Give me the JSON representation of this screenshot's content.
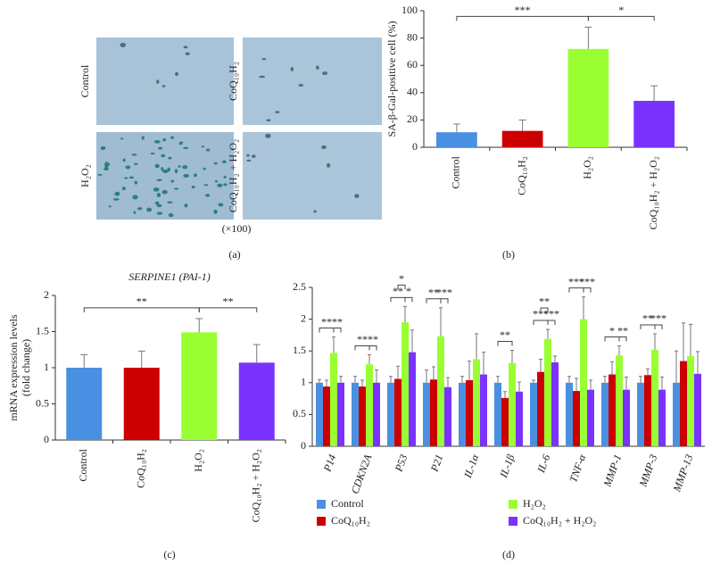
{
  "panel_a": {
    "labels": [
      "Control",
      "CoQ₁₀H₂",
      "H₂O₂",
      "CoQ₁₀H₂ + H₂O₂"
    ],
    "magnification": "(×100)",
    "caption": "(a)"
  },
  "chart_data": [
    {
      "type": "bar",
      "caption": "(b)",
      "y_label": [
        "SA-β-Gal-positive cell (%)"
      ],
      "categories": [
        "Control",
        "CoQ₁₀H₂",
        "H₂O₂",
        "CoQ₁₀H₂ + H₂O₂"
      ],
      "values": [
        11,
        12,
        72,
        34
      ],
      "errors": [
        6,
        8,
        16,
        11
      ],
      "colors": [
        "#4a90e2",
        "#cc0000",
        "#99ff33",
        "#7a33ff"
      ],
      "ylim": [
        0,
        100
      ],
      "yticks": [
        0,
        20,
        40,
        60,
        80,
        100
      ],
      "significance": [
        {
          "from": 0,
          "to": 2,
          "label": "***"
        },
        {
          "from": 2,
          "to": 3,
          "label": "*"
        }
      ]
    },
    {
      "type": "bar",
      "caption": "(c)",
      "title": "SERPINE1 (PAI-1)",
      "y_label": [
        "mRNA expression levels",
        "(fold change)"
      ],
      "categories": [
        "Control",
        "CoQ₁₀H₂",
        "H₂O₂",
        "CoQ₁₀H₂ + H₂O₂"
      ],
      "values": [
        1.0,
        1.0,
        1.49,
        1.07
      ],
      "errors": [
        0.18,
        0.23,
        0.19,
        0.25
      ],
      "colors": [
        "#4a90e2",
        "#cc0000",
        "#99ff33",
        "#7a33ff"
      ],
      "ylim": [
        0,
        2
      ],
      "yticks": [
        0,
        0.5,
        1,
        1.5,
        2
      ],
      "significance": [
        {
          "from": 0,
          "to": 2,
          "label": "**"
        },
        {
          "from": 2,
          "to": 3,
          "label": "**"
        }
      ]
    },
    {
      "type": "grouped_bar",
      "caption": "(d)",
      "categories": [
        "P14",
        "CDKN2A",
        "P53",
        "P21",
        "IL-1α",
        "IL-1β",
        "IL-6",
        "TNF-α",
        "MMP-1",
        "MMP-3",
        "MMP-13"
      ],
      "series": [
        {
          "name": "Control",
          "color": "#4a90e2",
          "values": [
            1,
            1,
            1,
            1,
            1,
            1,
            1,
            1,
            1,
            1,
            1
          ],
          "errors": [
            0.05,
            0.1,
            0.1,
            0.2,
            0.1,
            0.1,
            0.04,
            0.1,
            0.1,
            0.1,
            0.5
          ]
        },
        {
          "name": "CoQ₁₀H₂",
          "color": "#cc0000",
          "values": [
            0.94,
            0.94,
            1.06,
            1.05,
            1.04,
            0.76,
            1.17,
            0.87,
            1.13,
            1.12,
            1.34
          ],
          "errors": [
            0.1,
            0.1,
            0.2,
            0.2,
            0.3,
            0.1,
            0.2,
            0.2,
            0.2,
            0.1,
            0.6
          ]
        },
        {
          "name": "H₂O₂",
          "color": "#99ff33",
          "values": [
            1.47,
            1.29,
            1.95,
            1.73,
            1.37,
            1.31,
            1.69,
            2.0,
            1.43,
            1.52,
            1.42
          ],
          "errors": [
            0.25,
            0.15,
            0.25,
            0.45,
            0.4,
            0.2,
            0.15,
            0.35,
            0.15,
            0.25,
            0.5
          ]
        },
        {
          "name": "CoQ₁₀H₂ + H₂O₂",
          "color": "#7a33ff",
          "values": [
            1.0,
            1.0,
            1.48,
            0.93,
            1.13,
            0.86,
            1.32,
            0.89,
            0.89,
            0.89,
            1.14
          ],
          "errors": [
            0.1,
            0.2,
            0.35,
            0.15,
            0.35,
            0.15,
            0.1,
            0.15,
            0.2,
            0.2,
            0.35
          ]
        }
      ],
      "ylim": [
        0,
        2.5
      ],
      "yticks": [
        0,
        0.5,
        1,
        1.5,
        2,
        2.5
      ],
      "significance": [
        {
          "category": 0,
          "from": 0,
          "to": 2,
          "label": "**"
        },
        {
          "category": 0,
          "from": 2,
          "to": 3,
          "label": "**"
        },
        {
          "category": 1,
          "from": 0,
          "to": 2,
          "label": "**"
        },
        {
          "category": 1,
          "from": 2,
          "to": 3,
          "label": "**"
        },
        {
          "category": 2,
          "from": 0,
          "to": 2,
          "label": "**"
        },
        {
          "category": 2,
          "from": 2,
          "to": 3,
          "label": "*"
        },
        {
          "category": 2,
          "from": 1,
          "to": 2,
          "label": "*"
        },
        {
          "category": 3,
          "from": 0,
          "to": 2,
          "label": "**"
        },
        {
          "category": 3,
          "from": 2,
          "to": 3,
          "label": "***"
        },
        {
          "category": 5,
          "from": 0,
          "to": 2,
          "label": "**"
        },
        {
          "category": 6,
          "from": 0,
          "to": 2,
          "label": "***"
        },
        {
          "category": 6,
          "from": 2,
          "to": 3,
          "label": "***"
        },
        {
          "category": 6,
          "from": 1,
          "to": 2,
          "label": "**"
        },
        {
          "category": 7,
          "from": 0,
          "to": 2,
          "label": "***"
        },
        {
          "category": 7,
          "from": 2,
          "to": 3,
          "label": "***"
        },
        {
          "category": 8,
          "from": 0,
          "to": 2,
          "label": "*"
        },
        {
          "category": 8,
          "from": 2,
          "to": 3,
          "label": "**"
        },
        {
          "category": 9,
          "from": 0,
          "to": 2,
          "label": "**"
        },
        {
          "category": 9,
          "from": 2,
          "to": 3,
          "label": "***"
        }
      ]
    }
  ]
}
